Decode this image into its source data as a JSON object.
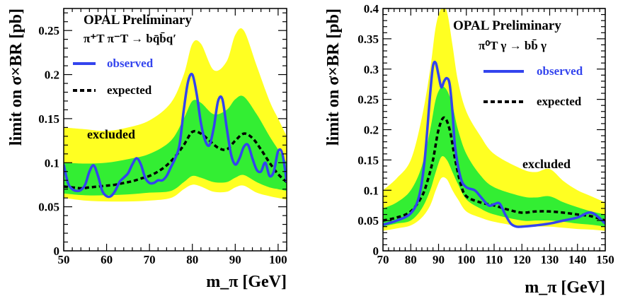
{
  "colors": {
    "band2": "#ffff22",
    "band1": "#33ee33",
    "observed": "#3344ee",
    "expected": "#000000",
    "axis": "#000000"
  },
  "chart_data": [
    {
      "type": "line",
      "title": "OPAL Preliminary",
      "process": "π⁺T π⁻T → bq̄b̄q′",
      "xlabel": "m_π [GeV]",
      "ylabel": "limit on σ×BR [pb]",
      "xlim": [
        50,
        102
      ],
      "ylim": [
        0,
        0.275
      ],
      "xticks": [
        50,
        60,
        70,
        80,
        90,
        100
      ],
      "yticks": [
        0,
        0.05,
        0.1,
        0.15,
        0.2,
        0.25
      ],
      "ytick_labels": [
        "0",
        "0.05",
        "0.1",
        "0.15",
        "0.2",
        "0.25"
      ],
      "legend": {
        "observed": "observed",
        "expected": "expected"
      },
      "annotation": "excluded",
      "series": [
        {
          "name": "observed",
          "x": [
            50,
            51,
            52,
            53,
            54,
            55,
            56,
            57,
            58,
            59,
            60,
            61,
            62,
            63,
            64,
            65,
            66,
            67,
            68,
            69,
            70,
            71,
            72,
            73,
            74,
            75,
            76,
            77,
            78,
            79,
            80,
            81,
            82,
            83,
            84,
            85,
            86,
            87,
            88,
            89,
            90,
            91,
            92,
            93,
            94,
            95,
            96,
            97,
            98,
            99,
            100,
            101,
            102
          ],
          "values": [
            0.098,
            0.077,
            0.07,
            0.068,
            0.069,
            0.075,
            0.09,
            0.097,
            0.085,
            0.068,
            0.062,
            0.062,
            0.068,
            0.078,
            0.083,
            0.088,
            0.098,
            0.105,
            0.098,
            0.083,
            0.077,
            0.077,
            0.08,
            0.08,
            0.085,
            0.095,
            0.105,
            0.12,
            0.16,
            0.192,
            0.2,
            0.178,
            0.145,
            0.125,
            0.12,
            0.14,
            0.17,
            0.172,
            0.14,
            0.11,
            0.098,
            0.105,
            0.118,
            0.12,
            0.105,
            0.092,
            0.09,
            0.1,
            0.085,
            0.09,
            0.113,
            0.11,
            0.078
          ]
        },
        {
          "name": "expected",
          "x": [
            50,
            52,
            54,
            56,
            58,
            60,
            62,
            64,
            66,
            68,
            70,
            72,
            74,
            76,
            78,
            80,
            82,
            84,
            86,
            88,
            90,
            92,
            94,
            96,
            98,
            100,
            102
          ],
          "values": [
            0.073,
            0.072,
            0.071,
            0.072,
            0.073,
            0.074,
            0.075,
            0.077,
            0.079,
            0.082,
            0.085,
            0.09,
            0.097,
            0.107,
            0.12,
            0.135,
            0.133,
            0.125,
            0.117,
            0.115,
            0.125,
            0.133,
            0.128,
            0.115,
            0.1,
            0.087,
            0.078
          ]
        },
        {
          "name": "band_2sigma_upper",
          "x": [
            50,
            55,
            60,
            65,
            70,
            75,
            78,
            80,
            82,
            85,
            88,
            90,
            92,
            95,
            98,
            100,
            102
          ],
          "values": [
            0.14,
            0.138,
            0.136,
            0.14,
            0.148,
            0.168,
            0.2,
            0.235,
            0.235,
            0.205,
            0.215,
            0.245,
            0.25,
            0.21,
            0.17,
            0.15,
            0.13
          ]
        },
        {
          "name": "band_1sigma_upper",
          "x": [
            50,
            55,
            60,
            65,
            70,
            75,
            78,
            80,
            82,
            85,
            88,
            90,
            92,
            95,
            98,
            100,
            102
          ],
          "values": [
            0.1,
            0.099,
            0.1,
            0.104,
            0.11,
            0.125,
            0.15,
            0.17,
            0.168,
            0.155,
            0.16,
            0.172,
            0.175,
            0.155,
            0.13,
            0.115,
            0.1
          ]
        },
        {
          "name": "band_1sigma_lower",
          "x": [
            50,
            55,
            60,
            65,
            70,
            75,
            78,
            80,
            82,
            85,
            88,
            90,
            92,
            95,
            98,
            100,
            102
          ],
          "values": [
            0.065,
            0.063,
            0.063,
            0.064,
            0.066,
            0.068,
            0.078,
            0.085,
            0.083,
            0.078,
            0.078,
            0.083,
            0.086,
            0.078,
            0.072,
            0.07,
            0.068
          ]
        },
        {
          "name": "band_2sigma_lower",
          "x": [
            50,
            55,
            60,
            65,
            70,
            75,
            78,
            80,
            82,
            85,
            88,
            90,
            92,
            95,
            98,
            100,
            102
          ],
          "values": [
            0.06,
            0.057,
            0.056,
            0.056,
            0.057,
            0.06,
            0.07,
            0.075,
            0.073,
            0.067,
            0.067,
            0.072,
            0.074,
            0.066,
            0.062,
            0.06,
            0.058
          ]
        }
      ]
    },
    {
      "type": "line",
      "title": "OPAL Preliminary",
      "process": "π⁰T γ → bb̄ γ",
      "xlabel": "m_π [GeV]",
      "ylabel": "limit on σ×BR [pb]",
      "xlim": [
        70,
        150
      ],
      "ylim": [
        0,
        0.4
      ],
      "xticks": [
        70,
        80,
        90,
        100,
        110,
        120,
        130,
        140,
        150
      ],
      "yticks": [
        0,
        0.05,
        0.1,
        0.15,
        0.2,
        0.25,
        0.3,
        0.35,
        0.4
      ],
      "ytick_labels": [
        "0",
        "0.05",
        "0.1",
        "0.15",
        "0.2",
        "0.25",
        "0.3",
        "0.35",
        "0.4"
      ],
      "legend": {
        "observed": "observed",
        "expected": "expected"
      },
      "annotation": "excluded",
      "series": [
        {
          "name": "observed",
          "x": [
            70,
            75,
            80,
            83,
            85,
            87,
            88,
            89,
            90,
            91,
            92,
            93,
            94,
            95,
            96,
            98,
            100,
            103,
            105,
            108,
            110,
            112,
            114,
            116,
            118,
            120,
            125,
            130,
            135,
            140,
            145,
            150
          ],
          "values": [
            0.043,
            0.05,
            0.062,
            0.09,
            0.15,
            0.26,
            0.305,
            0.31,
            0.29,
            0.27,
            0.28,
            0.285,
            0.275,
            0.23,
            0.17,
            0.12,
            0.105,
            0.1,
            0.09,
            0.075,
            0.077,
            0.078,
            0.06,
            0.045,
            0.04,
            0.04,
            0.042,
            0.045,
            0.05,
            0.055,
            0.063,
            0.045
          ]
        },
        {
          "name": "expected",
          "x": [
            70,
            75,
            80,
            84,
            86,
            88,
            90,
            92,
            94,
            96,
            98,
            100,
            105,
            110,
            115,
            120,
            125,
            130,
            135,
            140,
            145,
            150
          ],
          "values": [
            0.05,
            0.055,
            0.065,
            0.09,
            0.115,
            0.15,
            0.2,
            0.22,
            0.2,
            0.15,
            0.11,
            0.09,
            0.08,
            0.075,
            0.068,
            0.063,
            0.065,
            0.065,
            0.063,
            0.06,
            0.057,
            0.05
          ]
        },
        {
          "name": "band_2sigma_upper",
          "x": [
            70,
            75,
            80,
            84,
            87,
            89,
            91,
            93,
            95,
            97,
            100,
            105,
            110,
            120,
            125,
            130,
            135,
            140,
            145,
            150
          ],
          "values": [
            0.1,
            0.12,
            0.15,
            0.22,
            0.3,
            0.37,
            0.4,
            0.395,
            0.34,
            0.28,
            0.23,
            0.19,
            0.16,
            0.135,
            0.13,
            0.135,
            0.115,
            0.1,
            0.09,
            0.08
          ]
        },
        {
          "name": "band_1sigma_upper",
          "x": [
            70,
            75,
            80,
            84,
            87,
            89,
            91,
            93,
            95,
            97,
            100,
            105,
            110,
            120,
            125,
            130,
            135,
            140,
            145,
            150
          ],
          "values": [
            0.07,
            0.08,
            0.1,
            0.14,
            0.2,
            0.25,
            0.27,
            0.265,
            0.24,
            0.2,
            0.16,
            0.125,
            0.105,
            0.09,
            0.088,
            0.09,
            0.08,
            0.072,
            0.065,
            0.06
          ]
        },
        {
          "name": "band_1sigma_lower",
          "x": [
            70,
            75,
            80,
            84,
            87,
            89,
            91,
            93,
            95,
            97,
            100,
            105,
            110,
            120,
            125,
            130,
            135,
            140,
            145,
            150
          ],
          "values": [
            0.04,
            0.045,
            0.05,
            0.07,
            0.1,
            0.13,
            0.155,
            0.15,
            0.13,
            0.11,
            0.085,
            0.07,
            0.06,
            0.05,
            0.05,
            0.05,
            0.048,
            0.045,
            0.043,
            0.04
          ]
        },
        {
          "name": "band_2sigma_lower",
          "x": [
            70,
            75,
            80,
            84,
            87,
            89,
            91,
            93,
            95,
            97,
            100,
            105,
            110,
            120,
            125,
            130,
            135,
            140,
            145,
            150
          ],
          "values": [
            0.033,
            0.037,
            0.042,
            0.055,
            0.075,
            0.1,
            0.12,
            0.118,
            0.1,
            0.085,
            0.065,
            0.055,
            0.048,
            0.04,
            0.04,
            0.04,
            0.038,
            0.036,
            0.035,
            0.033
          ]
        }
      ]
    }
  ]
}
